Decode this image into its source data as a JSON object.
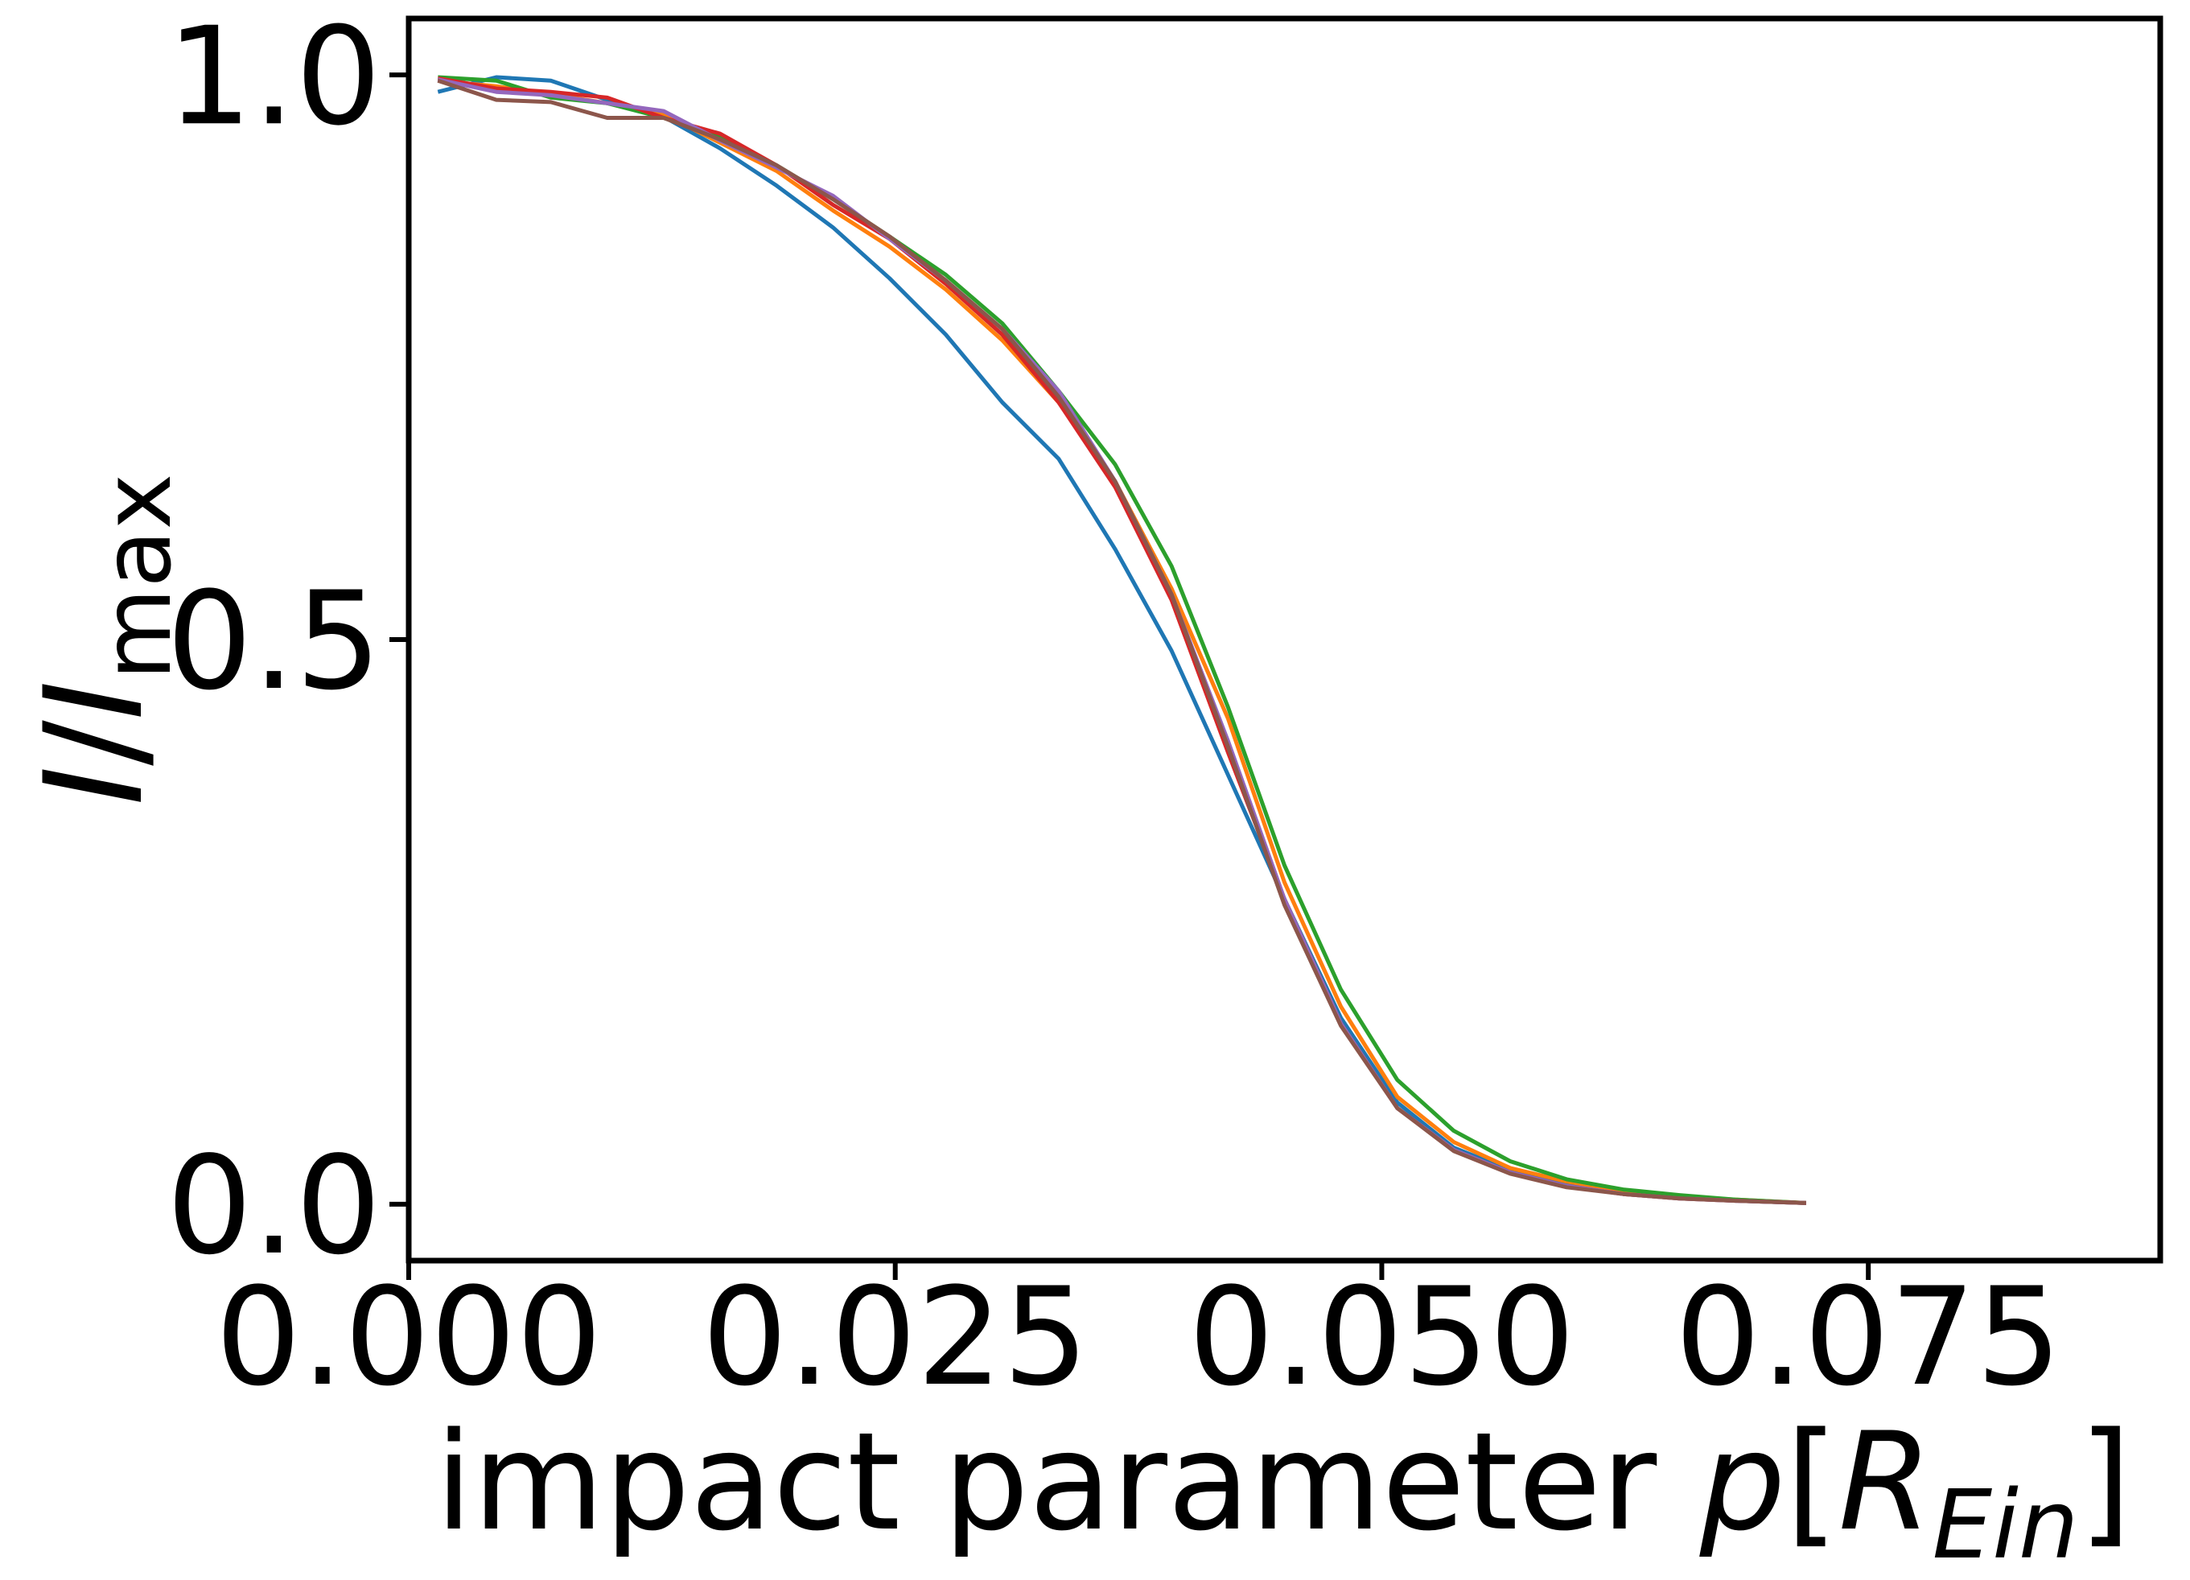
{
  "chart_data": {
    "type": "line",
    "title": "",
    "xlabel": {
      "text": "impact parameter ",
      "symbol": "p",
      "bracket_open": "[",
      "unit_base": "R",
      "unit_sub": "Ein",
      "bracket_close": "]"
    },
    "ylabel": {
      "symbol": "I",
      "slash": "/",
      "symbol2": "I",
      "sub": "max"
    },
    "xlim": [
      0.0,
      0.09
    ],
    "ylim": [
      -0.05,
      1.05
    ],
    "xticks": [
      0.0,
      0.025,
      0.05,
      0.075
    ],
    "xtick_labels": [
      "0.000",
      "0.025",
      "0.050",
      "0.075"
    ],
    "yticks": [
      0.0,
      0.5,
      1.0
    ],
    "ytick_labels": [
      "0.0",
      "0.5",
      "1.0"
    ],
    "grid": false,
    "legend": "none",
    "series": [
      {
        "color": "#1f77b4",
        "x": [
          0.0015,
          0.0045,
          0.0073,
          0.0102,
          0.0131,
          0.016,
          0.0189,
          0.0218,
          0.0247,
          0.0276,
          0.0305,
          0.0334,
          0.0363,
          0.0392,
          0.0421,
          0.045,
          0.0479,
          0.0508,
          0.0537,
          0.0566,
          0.0595,
          0.0624,
          0.0653,
          0.0682,
          0.0718
        ],
        "y": [
          0.985,
          0.998,
          0.995,
          0.978,
          0.963,
          0.935,
          0.902,
          0.865,
          0.82,
          0.77,
          0.71,
          0.66,
          0.58,
          0.49,
          0.38,
          0.27,
          0.165,
          0.09,
          0.05,
          0.03,
          0.018,
          0.01,
          0.006,
          0.003,
          0.001
        ]
      },
      {
        "color": "#ff7f0e",
        "x": [
          0.0015,
          0.0045,
          0.0073,
          0.0102,
          0.0131,
          0.016,
          0.0189,
          0.0218,
          0.0247,
          0.0276,
          0.0305,
          0.0334,
          0.0363,
          0.0392,
          0.0421,
          0.045,
          0.0479,
          0.0508,
          0.0537,
          0.0566,
          0.0595,
          0.0624,
          0.0653,
          0.0682,
          0.0718
        ],
        "y": [
          0.995,
          0.99,
          0.983,
          0.975,
          0.965,
          0.94,
          0.915,
          0.88,
          0.848,
          0.81,
          0.765,
          0.71,
          0.64,
          0.545,
          0.43,
          0.285,
          0.175,
          0.095,
          0.055,
          0.032,
          0.02,
          0.012,
          0.007,
          0.004,
          0.001
        ]
      },
      {
        "color": "#2ca02c",
        "x": [
          0.0015,
          0.0045,
          0.0073,
          0.0102,
          0.0131,
          0.016,
          0.0189,
          0.0218,
          0.0247,
          0.0276,
          0.0305,
          0.0334,
          0.0363,
          0.0392,
          0.0421,
          0.045,
          0.0479,
          0.0508,
          0.0537,
          0.0566,
          0.0595,
          0.0624,
          0.0653,
          0.0682,
          0.0718
        ],
        "y": [
          0.998,
          0.995,
          0.98,
          0.975,
          0.962,
          0.945,
          0.92,
          0.89,
          0.857,
          0.823,
          0.78,
          0.72,
          0.655,
          0.565,
          0.44,
          0.3,
          0.19,
          0.11,
          0.065,
          0.038,
          0.022,
          0.013,
          0.008,
          0.004,
          0.001
        ]
      },
      {
        "color": "#d62728",
        "x": [
          0.0015,
          0.0045,
          0.0073,
          0.0102,
          0.0131,
          0.016,
          0.0189,
          0.0218,
          0.0247,
          0.0276,
          0.0305,
          0.0334,
          0.0363,
          0.0392,
          0.0421,
          0.045,
          0.0479,
          0.0508,
          0.0537,
          0.0566,
          0.0595,
          0.0624,
          0.0653,
          0.0682,
          0.0718
        ],
        "y": [
          0.997,
          0.988,
          0.985,
          0.98,
          0.962,
          0.948,
          0.92,
          0.885,
          0.855,
          0.815,
          0.77,
          0.71,
          0.635,
          0.535,
          0.4,
          0.27,
          0.16,
          0.085,
          0.048,
          0.028,
          0.016,
          0.009,
          0.005,
          0.003,
          0.001
        ]
      },
      {
        "color": "#9467bd",
        "x": [
          0.0015,
          0.0045,
          0.0073,
          0.0102,
          0.0131,
          0.016,
          0.0189,
          0.0218,
          0.0247,
          0.0276,
          0.0305,
          0.0334,
          0.0363,
          0.0392,
          0.0421,
          0.045,
          0.0479,
          0.0508,
          0.0537,
          0.0566,
          0.0595,
          0.0624,
          0.0653,
          0.0682,
          0.0718
        ],
        "y": [
          0.996,
          0.985,
          0.982,
          0.975,
          0.968,
          0.942,
          0.918,
          0.893,
          0.855,
          0.818,
          0.775,
          0.72,
          0.64,
          0.54,
          0.41,
          0.27,
          0.16,
          0.085,
          0.048,
          0.028,
          0.016,
          0.009,
          0.005,
          0.003,
          0.001
        ]
      },
      {
        "color": "#8c564b",
        "x": [
          0.0015,
          0.0045,
          0.0073,
          0.0102,
          0.0131,
          0.016,
          0.0189,
          0.0218,
          0.0247,
          0.0276,
          0.0305,
          0.0334,
          0.0363,
          0.0392,
          0.0421,
          0.045,
          0.0479,
          0.0508,
          0.0537,
          0.0566,
          0.0595,
          0.0624,
          0.0653,
          0.0682,
          0.0718
        ],
        "y": [
          0.995,
          0.978,
          0.976,
          0.962,
          0.962,
          0.943,
          0.92,
          0.89,
          0.857,
          0.818,
          0.775,
          0.715,
          0.64,
          0.54,
          0.405,
          0.265,
          0.158,
          0.085,
          0.047,
          0.027,
          0.015,
          0.009,
          0.005,
          0.003,
          0.001
        ]
      }
    ]
  }
}
